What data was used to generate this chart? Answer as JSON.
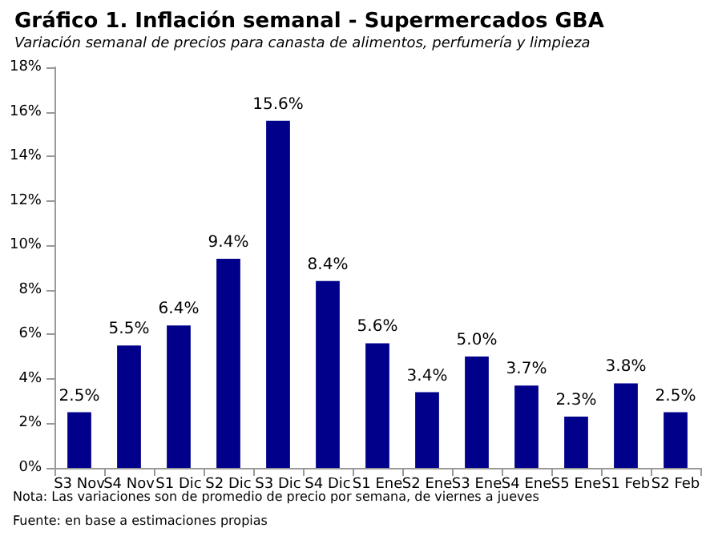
{
  "chart_data": {
    "type": "bar",
    "title": "Gráfico 1. Inflación semanal - Supermercados GBA",
    "subtitle": "Variación semanal de precios para canasta de alimentos, perfumería y limpieza",
    "categories": [
      "S3 Nov",
      "S4 Nov",
      "S1 Dic",
      "S2 Dic",
      "S3 Dic",
      "S4 Dic",
      "S1 Ene",
      "S2 Ene",
      "S3 Ene",
      "S4 Ene",
      "S5 Ene",
      "S1 Feb",
      "S2 Feb"
    ],
    "values": [
      2.5,
      5.5,
      6.4,
      9.4,
      15.6,
      8.4,
      5.6,
      3.4,
      5.0,
      3.7,
      2.3,
      3.8,
      2.5
    ],
    "value_labels": [
      "2.5%",
      "5.5%",
      "6.4%",
      "9.4%",
      "15.6%",
      "8.4%",
      "5.6%",
      "3.4%",
      "5.0%",
      "3.7%",
      "2.3%",
      "3.8%",
      "2.5%"
    ],
    "color": "#00008b",
    "ylim": [
      0,
      18
    ],
    "yticks": [
      {
        "value": 0,
        "label": "0%"
      },
      {
        "value": 2,
        "label": "2%"
      },
      {
        "value": 4,
        "label": "4%"
      },
      {
        "value": 6,
        "label": "6%"
      },
      {
        "value": 8,
        "label": "8%"
      },
      {
        "value": 10,
        "label": "10%"
      },
      {
        "value": 12,
        "label": "12%"
      },
      {
        "value": 14,
        "label": "14%"
      },
      {
        "value": 16,
        "label": "16%"
      },
      {
        "value": 18,
        "label": "18%"
      }
    ],
    "grid": false,
    "annotations": [
      "Nota: Las variaciones son de promedio de precio por semana, de viernes a jueves",
      "Fuente: en base a estimaciones propias"
    ]
  }
}
